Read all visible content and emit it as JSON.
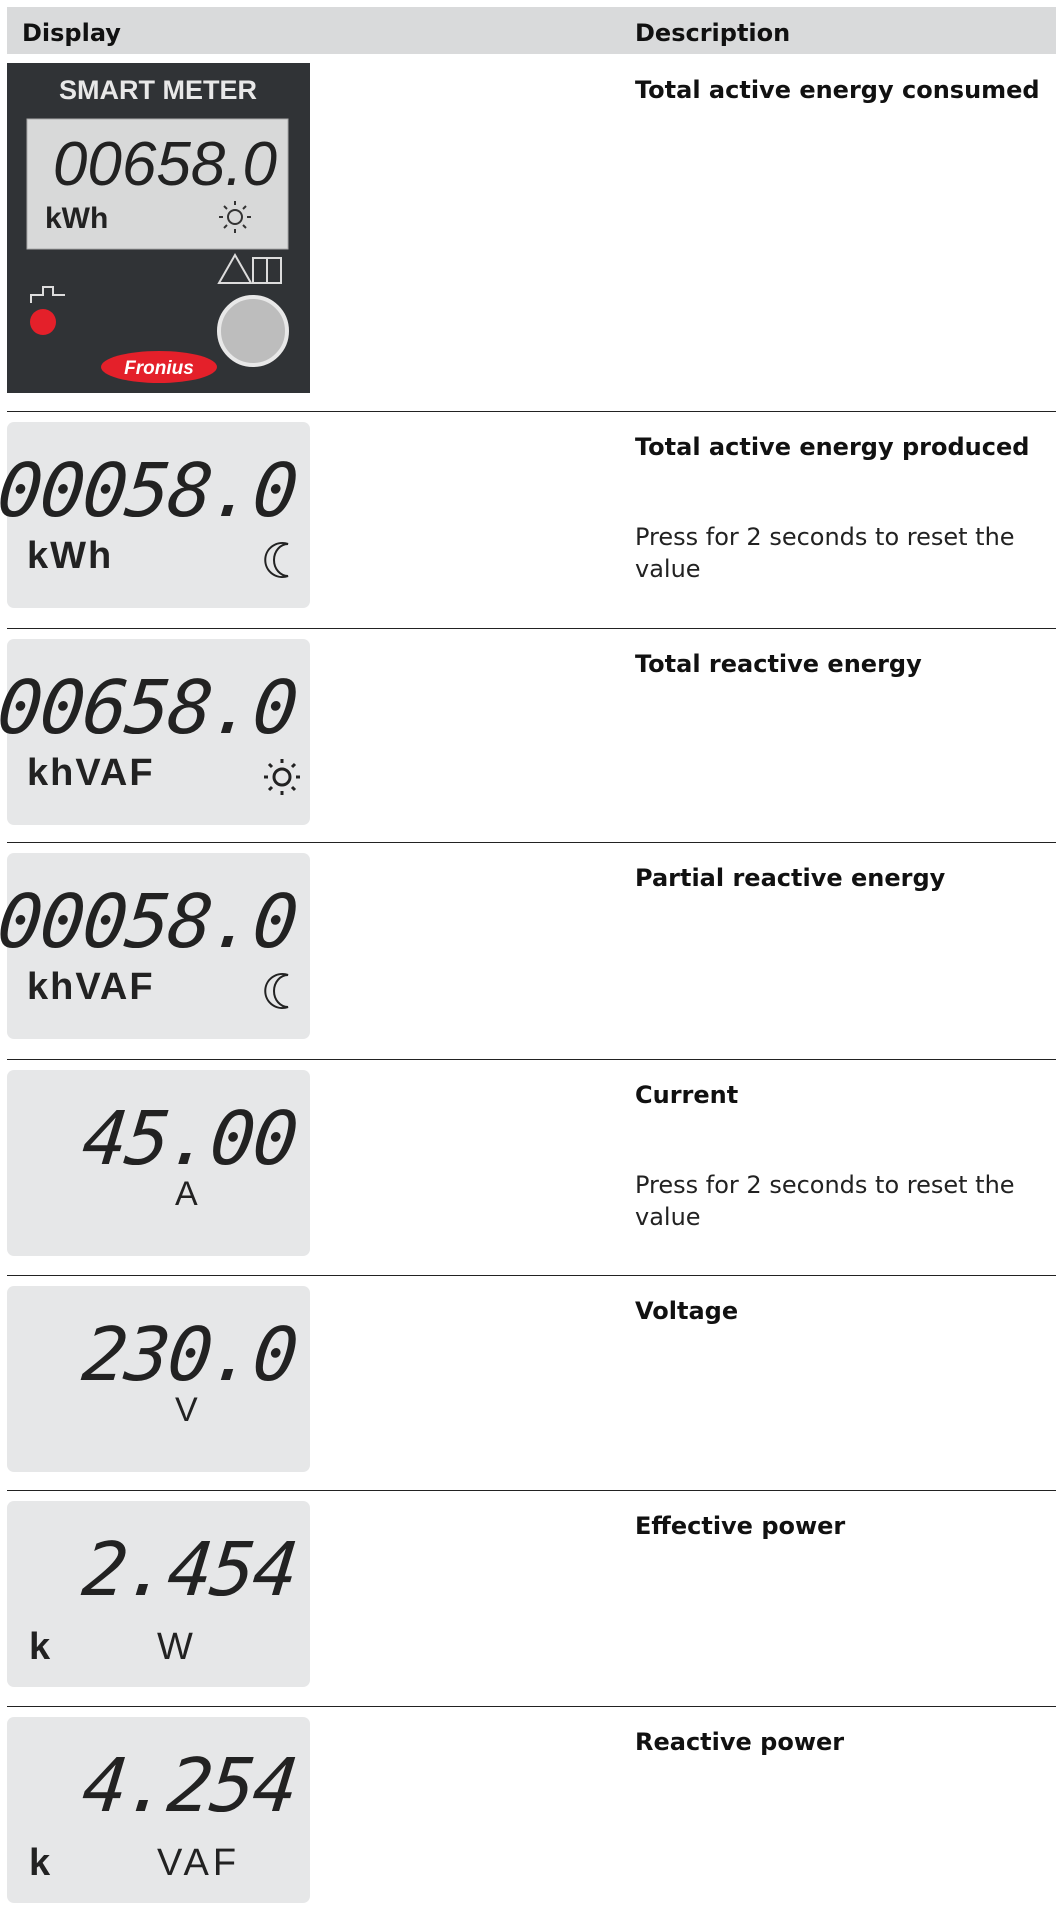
{
  "header": {
    "display": "Display",
    "description": "Description"
  },
  "device": {
    "label": "SMART METER",
    "brand": "Fronius"
  },
  "rows": [
    {
      "reading": "00658.0",
      "unit": "kWh",
      "title": "Total active energy consumed"
    },
    {
      "reading": "00058.0",
      "unit": "kWh",
      "title": "Total active energy produced",
      "note": "Press for 2 seconds to reset the value"
    },
    {
      "reading": "00658.0",
      "unit": "khVAF",
      "title": "Total reactive energy"
    },
    {
      "reading": "00058.0",
      "unit": "khVAF",
      "title": "Partial reactive energy"
    },
    {
      "reading": "45.00",
      "unit": "A",
      "title": "Current",
      "note": "Press for 2 seconds to reset the value"
    },
    {
      "reading": "230.0",
      "unit": "V",
      "title": "Voltage"
    },
    {
      "reading": "2.454",
      "prefix": "k",
      "unit": "W",
      "title": "Effective power"
    },
    {
      "reading": "4.254",
      "prefix": "k",
      "unit": "VAF",
      "title": "Reactive power"
    }
  ]
}
